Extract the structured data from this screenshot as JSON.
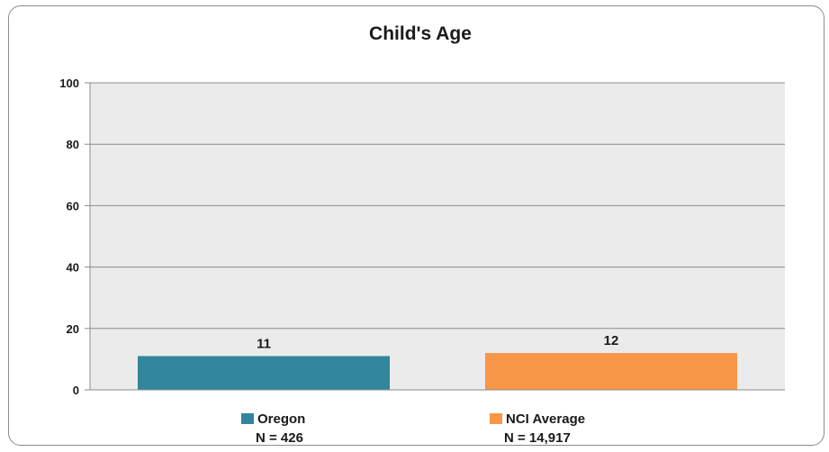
{
  "chart_data": {
    "type": "bar",
    "title": "Child's Age",
    "xlabel": "",
    "ylabel": "",
    "ylim": [
      0,
      100
    ],
    "yticks": [
      0,
      20,
      40,
      60,
      80,
      100
    ],
    "grid": true,
    "legend_position": "bottom",
    "categories": [
      "Oregon",
      "NCI Average"
    ],
    "values": [
      11,
      12
    ],
    "data_labels": [
      "11",
      "12"
    ],
    "legend": [
      {
        "name": "Oregon",
        "sub": "N = 426",
        "color": "#31859c"
      },
      {
        "name": "NCI Average",
        "sub": "N = 14,917",
        "color": "#f79646"
      }
    ],
    "colors": [
      "#31859c",
      "#f79646"
    ],
    "plot_background": "#ebebeb",
    "gridline_color": "#8c8c8c"
  }
}
